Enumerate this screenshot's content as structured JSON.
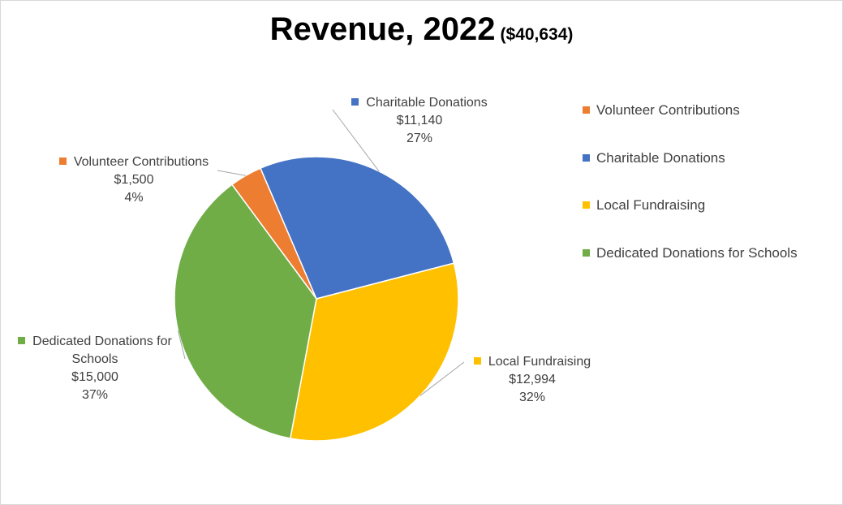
{
  "chart_data": {
    "type": "pie",
    "title": "Revenue, 2022",
    "subtitle": "($40,634)",
    "slices": [
      {
        "name": "Volunteer Contributions",
        "value": 1500,
        "value_label": "$1,500",
        "percent_label": "4%",
        "color": "#ED7D31"
      },
      {
        "name": "Charitable Donations",
        "value": 11140,
        "value_label": "$11,140",
        "percent_label": "27%",
        "color": "#4472C4"
      },
      {
        "name": "Local Fundraising",
        "value": 12994,
        "value_label": "$12,994",
        "percent_label": "32%",
        "color": "#FFC000"
      },
      {
        "name": "Dedicated Donations for Schools",
        "value": 15000,
        "value_label": "$15,000",
        "percent_label": "37%",
        "color": "#70AD47"
      }
    ],
    "data_labels": [
      {
        "name_lines": [
          "Volunteer Contributions"
        ],
        "value_label": "$1,500",
        "percent_label": "4%"
      },
      {
        "name_lines": [
          "Charitable Donations"
        ],
        "value_label": "$11,140",
        "percent_label": "27%"
      },
      {
        "name_lines": [
          "Local Fundraising"
        ],
        "value_label": "$12,994",
        "percent_label": "32%"
      },
      {
        "name_lines": [
          "Dedicated Donations for",
          "Schools"
        ],
        "value_label": "$15,000",
        "percent_label": "37%"
      }
    ],
    "legend": {
      "placement": "right",
      "entries": [
        "Volunteer Contributions",
        "Charitable Donations",
        "Local Fundraising",
        "Dedicated Donations for Schools"
      ]
    }
  }
}
